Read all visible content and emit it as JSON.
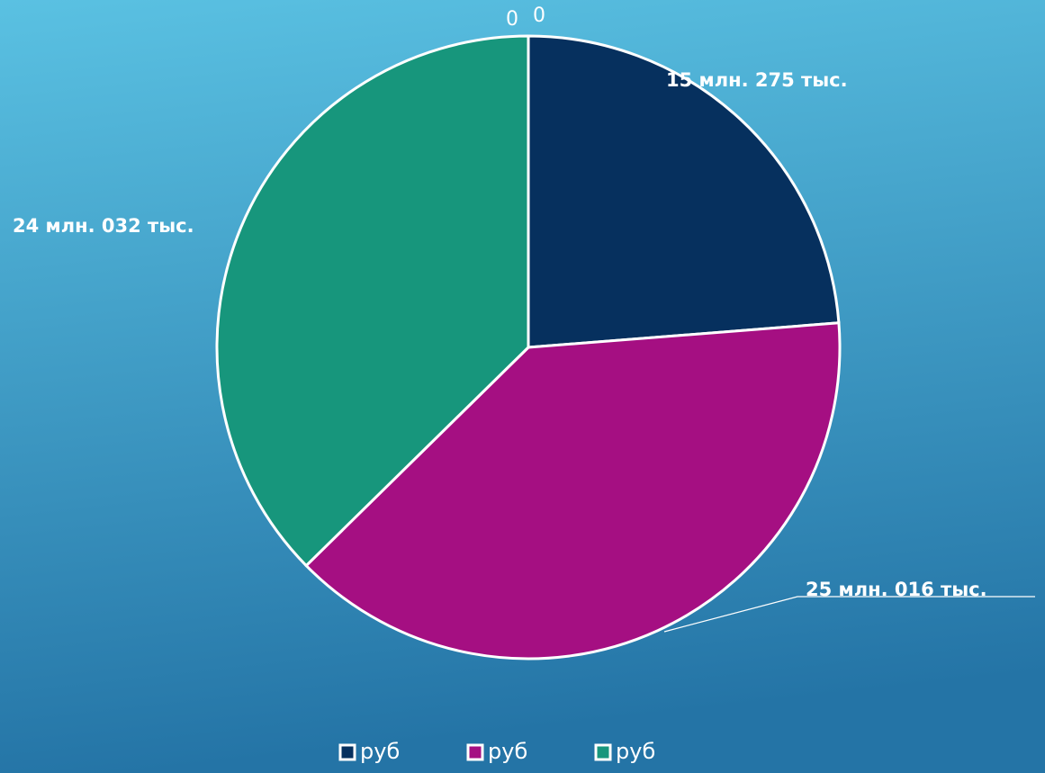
{
  "chart_data": {
    "type": "pie",
    "categories": [
      null,
      "руб",
      "руб",
      "руб",
      null
    ],
    "values": [
      0,
      15275000,
      25016000,
      24032000,
      0
    ],
    "value_labels": [
      "0",
      "15 млн. 275 тыс.",
      "25 млн. 016 тыс.",
      "24 млн. 032 тыс.",
      "0"
    ],
    "colors": [
      null,
      "#06305e",
      "#a50f82",
      "#17967c",
      null
    ],
    "legend": "bottom"
  }
}
